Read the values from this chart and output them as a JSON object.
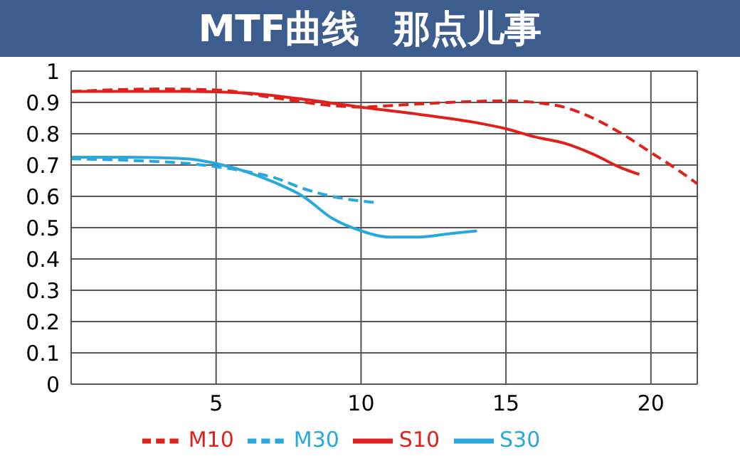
{
  "chart_data": {
    "type": "line",
    "title": "MTF曲线",
    "subtitle": "那点儿事",
    "xlim": [
      0,
      21.6
    ],
    "xticks": [
      5,
      10,
      15,
      20
    ],
    "ylim": [
      0,
      1
    ],
    "yticks": [
      0,
      0.1,
      0.2,
      0.3,
      0.4,
      0.5,
      0.6,
      0.7,
      0.8,
      0.9,
      1
    ],
    "grid": true,
    "legend": "bottom",
    "marker": "none",
    "series": [
      {
        "name": "S10",
        "color": "#e0201b",
        "line_style": "solid",
        "x": [
          0,
          2,
          4,
          6,
          8,
          10,
          12,
          14,
          15,
          16,
          17,
          18,
          19,
          19.6
        ],
        "values": [
          0.935,
          0.935,
          0.935,
          0.93,
          0.91,
          0.885,
          0.862,
          0.835,
          0.816,
          0.79,
          0.77,
          0.735,
          0.69,
          0.67
        ]
      },
      {
        "name": "M10",
        "color": "#e0201b",
        "line_style": "dashed",
        "x": [
          0,
          3,
          5,
          7,
          9,
          10,
          11,
          13,
          15,
          16,
          17,
          18,
          19,
          20,
          21,
          21.6
        ],
        "values": [
          0.935,
          0.943,
          0.94,
          0.915,
          0.89,
          0.885,
          0.89,
          0.9,
          0.905,
          0.9,
          0.885,
          0.85,
          0.8,
          0.74,
          0.68,
          0.64
        ]
      },
      {
        "name": "S30",
        "color": "#29a8e0",
        "line_style": "solid",
        "x": [
          0,
          2,
          4,
          5,
          6,
          7,
          8,
          9,
          10,
          11,
          12,
          13,
          14
        ],
        "values": [
          0.725,
          0.725,
          0.72,
          0.705,
          0.68,
          0.645,
          0.6,
          0.53,
          0.49,
          0.47,
          0.47,
          0.48,
          0.49
        ]
      },
      {
        "name": "M30",
        "color": "#29a8e0",
        "line_style": "dashed",
        "x": [
          0,
          2,
          4,
          6,
          7,
          8,
          9,
          10.5
        ],
        "values": [
          0.72,
          0.715,
          0.705,
          0.68,
          0.66,
          0.625,
          0.6,
          0.58
        ]
      }
    ]
  }
}
